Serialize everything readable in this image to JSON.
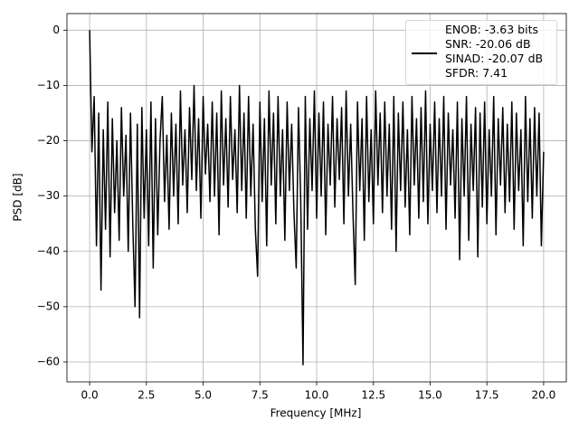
{
  "chart_data": {
    "type": "line",
    "x_label": "Frequency [MHz]",
    "y_label": "PSD [dB]",
    "x": [
      0,
      0.1,
      0.2,
      0.3,
      0.4,
      0.5,
      0.6,
      0.7,
      0.8,
      0.9,
      1,
      1.1,
      1.2,
      1.3,
      1.4,
      1.5,
      1.6,
      1.7,
      1.8,
      1.9,
      2,
      2.1,
      2.2,
      2.3,
      2.4,
      2.5,
      2.6,
      2.7,
      2.8,
      2.9,
      3,
      3.1,
      3.2,
      3.3,
      3.4,
      3.5,
      3.6,
      3.7,
      3.8,
      3.9,
      4,
      4.1,
      4.2,
      4.3,
      4.4,
      4.5,
      4.6,
      4.7,
      4.8,
      4.9,
      5,
      5.1,
      5.2,
      5.3,
      5.4,
      5.5,
      5.6,
      5.7,
      5.8,
      5.9,
      6,
      6.1,
      6.2,
      6.3,
      6.4,
      6.5,
      6.6,
      6.7,
      6.8,
      6.9,
      7,
      7.1,
      7.2,
      7.3,
      7.4,
      7.5,
      7.6,
      7.7,
      7.8,
      7.9,
      8,
      8.1,
      8.2,
      8.3,
      8.4,
      8.5,
      8.6,
      8.7,
      8.8,
      8.9,
      9,
      9.1,
      9.2,
      9.3,
      9.4,
      9.5,
      9.6,
      9.7,
      9.8,
      9.9,
      10,
      10.1,
      10.2,
      10.3,
      10.4,
      10.5,
      10.6,
      10.7,
      10.8,
      10.9,
      11,
      11.1,
      11.2,
      11.3,
      11.4,
      11.5,
      11.6,
      11.7,
      11.8,
      11.9,
      12,
      12.1,
      12.2,
      12.3,
      12.4,
      12.5,
      12.6,
      12.7,
      12.8,
      12.9,
      13,
      13.1,
      13.2,
      13.3,
      13.4,
      13.5,
      13.6,
      13.7,
      13.8,
      13.9,
      14,
      14.1,
      14.2,
      14.3,
      14.4,
      14.5,
      14.6,
      14.7,
      14.8,
      14.9,
      15,
      15.1,
      15.2,
      15.3,
      15.4,
      15.5,
      15.6,
      15.7,
      15.8,
      15.9,
      16,
      16.1,
      16.2,
      16.3,
      16.4,
      16.5,
      16.6,
      16.7,
      16.8,
      16.9,
      17,
      17.1,
      17.2,
      17.3,
      17.4,
      17.5,
      17.6,
      17.7,
      17.8,
      17.9,
      18,
      18.1,
      18.2,
      18.3,
      18.4,
      18.5,
      18.6,
      18.7,
      18.8,
      18.9,
      19,
      19.1,
      19.2,
      19.3,
      19.4,
      19.5,
      19.6,
      19.7,
      19.8,
      19.9,
      20
    ],
    "series": [
      {
        "name": "ENOB: -3.63 bits\nSNR: -20.06 dB\nSINAD: -20.07 dB\nSFDR: 7.41",
        "color": "#000000",
        "values": [
          0,
          -22,
          -12,
          -39,
          -15,
          -47,
          -18,
          -36,
          -13,
          -41,
          -16,
          -33,
          -20,
          -38,
          -14,
          -30,
          -19,
          -40,
          -15,
          -35,
          -50,
          -17,
          -52,
          -14,
          -34,
          -18,
          -39,
          -13,
          -43,
          -16,
          -37,
          -20,
          -12,
          -31,
          -19,
          -36,
          -15,
          -30,
          -17,
          -35,
          -11,
          -28,
          -18,
          -33,
          -14,
          -27,
          -10,
          -29,
          -16,
          -34,
          -12,
          -26,
          -17,
          -31,
          -13,
          -30,
          -15,
          -37,
          -11,
          -28,
          -16,
          -32,
          -12,
          -27,
          -18,
          -33,
          -10,
          -29,
          -15,
          -34,
          -12,
          -30,
          -17,
          -36,
          -44.5,
          -13,
          -31,
          -16,
          -39,
          -11,
          -28,
          -15,
          -35,
          -12,
          -30,
          -18,
          -38,
          -13,
          -29,
          -17,
          -33,
          -43,
          -14,
          -31,
          -60.5,
          -12,
          -36,
          -16,
          -29,
          -11,
          -34,
          -15,
          -30,
          -13,
          -37,
          -17,
          -28,
          -12,
          -32,
          -16,
          -27,
          -14,
          -35,
          -11,
          -30,
          -17,
          -33,
          -46,
          -13,
          -29,
          -16,
          -38,
          -12,
          -31,
          -18,
          -35,
          -11,
          -28,
          -15,
          -33,
          -13,
          -30,
          -17,
          -36,
          -12,
          -40,
          -15,
          -29,
          -13,
          -32,
          -18,
          -37,
          -12,
          -28,
          -16,
          -34,
          -14,
          -31,
          -11,
          -35,
          -17,
          -29,
          -13,
          -33,
          -16,
          -30,
          -12,
          -36,
          -15,
          -28,
          -18,
          -34,
          -13,
          -41.5,
          -16,
          -30,
          -12,
          -38,
          -17,
          -29,
          -14,
          -41,
          -15,
          -32,
          -13,
          -35,
          -18,
          -30,
          -12,
          -37,
          -16,
          -28,
          -14,
          -33,
          -17,
          -31,
          -13,
          -36,
          -15,
          -29,
          -18,
          -39,
          -12,
          -31,
          -16,
          -34,
          -14,
          -30,
          -15,
          -39,
          -22
        ]
      }
    ],
    "xlim": [
      -1,
      21
    ],
    "ylim": [
      -63.6,
      3
    ],
    "xticks": [
      {
        "value": 0,
        "label": "0.0"
      },
      {
        "value": 2.5,
        "label": "2.5"
      },
      {
        "value": 5,
        "label": "5.0"
      },
      {
        "value": 7.5,
        "label": "7.5"
      },
      {
        "value": 10,
        "label": "10.0"
      },
      {
        "value": 12.5,
        "label": "12.5"
      },
      {
        "value": 15,
        "label": "15.0"
      },
      {
        "value": 17.5,
        "label": "17.5"
      },
      {
        "value": 20,
        "label": "20.0"
      }
    ],
    "yticks": [
      0,
      {
        "value": -10,
        "label": "−10"
      },
      {
        "value": -20,
        "label": "−20"
      },
      {
        "value": -30,
        "label": "−30"
      },
      {
        "value": -40,
        "label": "−40"
      },
      {
        "value": -50,
        "label": "−50"
      },
      {
        "value": -60,
        "label": "−60"
      }
    ],
    "grid": true,
    "legend": "upper-right"
  }
}
